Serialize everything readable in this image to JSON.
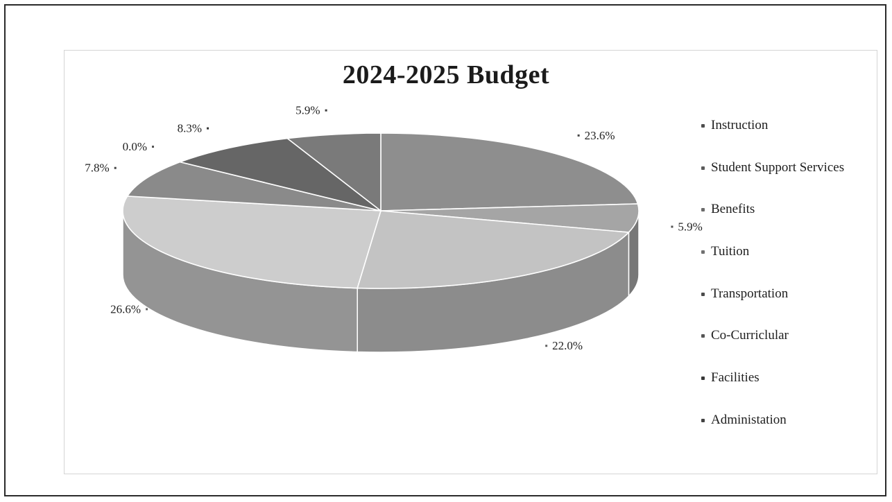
{
  "chart_data": {
    "type": "pie",
    "title": "2024-2025 Budget",
    "legend_position": "right",
    "categories": [
      "Instruction",
      "Student Support Services",
      "Benefits",
      "Tuition",
      "Transportation",
      "Co-Curriclular",
      "Facilities",
      "Administation"
    ],
    "values": [
      23.6,
      5.9,
      22.0,
      26.6,
      7.8,
      0.0,
      8.3,
      5.9
    ],
    "labels": [
      "23.6%",
      "5.9%",
      "22.0%",
      "26.6%",
      "7.8%",
      "0.0%",
      "8.3%",
      "5.9%"
    ],
    "colors": [
      "#8e8e8e",
      "#a5a5a5",
      "#c3c3c3",
      "#cdcdcd",
      "#8a8a8a",
      "#9d9d9d",
      "#666666",
      "#7a7a7a"
    ],
    "style": "3d-tilted"
  }
}
